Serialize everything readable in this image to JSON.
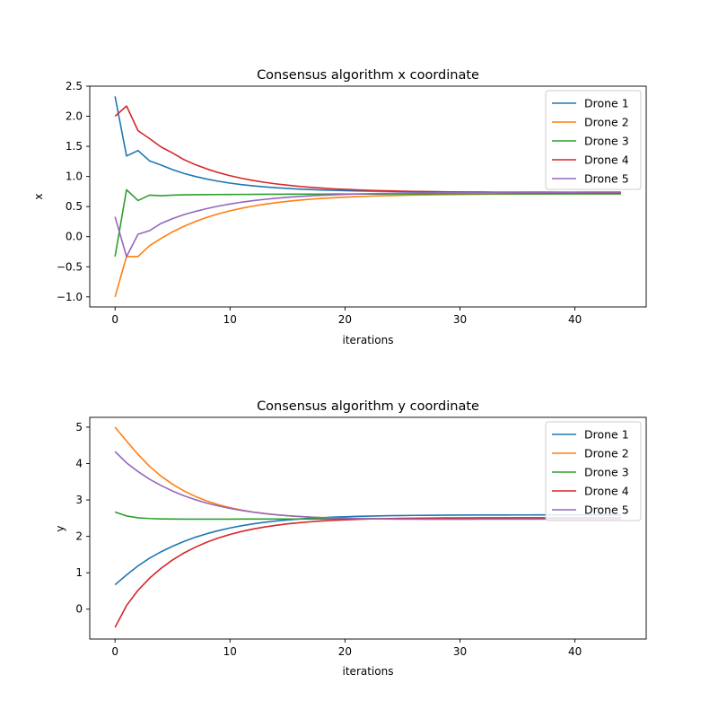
{
  "chart_data": [
    {
      "type": "line",
      "title": "Consensus algorithm x coordinate",
      "xlabel": "iterations",
      "ylabel": "x",
      "xlim": [
        -2.2,
        46.2
      ],
      "ylim": [
        -1.167,
        2.5
      ],
      "xticks": [
        0,
        10,
        20,
        30,
        40
      ],
      "xtick_labels": [
        "0",
        "10",
        "20",
        "30",
        "40"
      ],
      "yticks": [
        -1.0,
        -0.5,
        0.0,
        0.5,
        1.0,
        1.5,
        2.0,
        2.5
      ],
      "ytick_labels": [
        "−1.0",
        "−0.5",
        "0.0",
        "0.5",
        "1.0",
        "1.5",
        "2.0",
        "2.5"
      ],
      "grid": false,
      "legend_position": "top-right",
      "x": [
        0,
        1,
        2,
        3,
        4,
        5,
        6,
        7,
        8,
        9,
        10,
        11,
        12,
        13,
        14,
        15,
        16,
        17,
        18,
        19,
        20,
        21,
        22,
        23,
        24,
        25,
        26,
        27,
        28,
        29,
        30,
        31,
        32,
        33,
        34,
        35,
        36,
        37,
        38,
        39,
        40,
        41,
        42,
        43,
        44
      ],
      "series": [
        {
          "name": "Drone 1",
          "color": "#1f77b4",
          "values": [
            2.33,
            1.34,
            1.43,
            1.26,
            1.19,
            1.113,
            1.051,
            0.999,
            0.956,
            0.92,
            0.89,
            0.865,
            0.845,
            0.828,
            0.813,
            0.801,
            0.791,
            0.783,
            0.776,
            0.77,
            0.765,
            0.761,
            0.757,
            0.754,
            0.752,
            0.75,
            0.748,
            0.746,
            0.745,
            0.744,
            0.743,
            0.742,
            0.742,
            0.741,
            0.741,
            0.74,
            0.74,
            0.74,
            0.74,
            0.739,
            0.739,
            0.739,
            0.739,
            0.739,
            0.739
          ]
        },
        {
          "name": "Drone 2",
          "color": "#ff7f0e",
          "values": [
            -1.0,
            -0.33,
            -0.33,
            -0.15,
            -0.03,
            0.08,
            0.173,
            0.253,
            0.322,
            0.38,
            0.43,
            0.472,
            0.508,
            0.539,
            0.565,
            0.587,
            0.606,
            0.622,
            0.635,
            0.647,
            0.657,
            0.665,
            0.672,
            0.678,
            0.683,
            0.687,
            0.691,
            0.694,
            0.697,
            0.699,
            0.701,
            0.703,
            0.704,
            0.706,
            0.707,
            0.708,
            0.709,
            0.709,
            0.71,
            0.711,
            0.711,
            0.711,
            0.712,
            0.712,
            0.712
          ]
        },
        {
          "name": "Drone 3",
          "color": "#2ca02c",
          "values": [
            -0.33,
            0.78,
            0.6,
            0.69,
            0.68,
            0.69,
            0.695,
            0.697,
            0.699,
            0.7,
            0.701,
            0.702,
            0.703,
            0.704,
            0.705,
            0.706,
            0.706,
            0.707,
            0.707,
            0.708,
            0.708,
            0.709,
            0.709,
            0.709,
            0.71,
            0.71,
            0.71,
            0.71,
            0.711,
            0.711,
            0.711,
            0.711,
            0.711,
            0.711,
            0.712,
            0.712,
            0.712,
            0.712,
            0.712,
            0.712,
            0.712,
            0.712,
            0.712,
            0.712,
            0.712
          ]
        },
        {
          "name": "Drone 4",
          "color": "#d62728",
          "values": [
            2.0,
            2.17,
            1.76,
            1.63,
            1.49,
            1.39,
            1.279,
            1.195,
            1.124,
            1.064,
            1.013,
            0.97,
            0.934,
            0.903,
            0.877,
            0.855,
            0.836,
            0.82,
            0.807,
            0.795,
            0.786,
            0.778,
            0.771,
            0.765,
            0.76,
            0.755,
            0.752,
            0.749,
            0.746,
            0.744,
            0.742,
            0.74,
            0.739,
            0.737,
            0.736,
            0.735,
            0.735,
            0.734,
            0.733,
            0.733,
            0.732,
            0.732,
            0.732,
            0.732,
            0.731
          ]
        },
        {
          "name": "Drone 5",
          "color": "#9467bd",
          "values": [
            0.33,
            -0.33,
            0.04,
            0.1,
            0.22,
            0.3,
            0.366,
            0.42,
            0.467,
            0.508,
            0.543,
            0.573,
            0.598,
            0.62,
            0.638,
            0.654,
            0.667,
            0.678,
            0.688,
            0.696,
            0.703,
            0.708,
            0.713,
            0.717,
            0.721,
            0.724,
            0.726,
            0.728,
            0.73,
            0.732,
            0.733,
            0.734,
            0.735,
            0.736,
            0.737,
            0.737,
            0.738,
            0.738,
            0.739,
            0.739,
            0.739,
            0.74,
            0.74,
            0.74,
            0.74
          ]
        }
      ]
    },
    {
      "type": "line",
      "title": "Consensus algorithm y coordinate",
      "xlabel": "iterations",
      "ylabel": "y",
      "xlim": [
        -2.2,
        46.2
      ],
      "ylim": [
        -0.82,
        5.27
      ],
      "xticks": [
        0,
        10,
        20,
        30,
        40
      ],
      "xtick_labels": [
        "0",
        "10",
        "20",
        "30",
        "40"
      ],
      "yticks": [
        0,
        1,
        2,
        3,
        4,
        5
      ],
      "ytick_labels": [
        "0",
        "1",
        "2",
        "3",
        "4",
        "5"
      ],
      "grid": false,
      "legend_position": "top-right",
      "x": [
        0,
        1,
        2,
        3,
        4,
        5,
        6,
        7,
        8,
        9,
        10,
        11,
        12,
        13,
        14,
        15,
        16,
        17,
        18,
        19,
        20,
        21,
        22,
        23,
        24,
        25,
        26,
        27,
        28,
        29,
        30,
        31,
        32,
        33,
        34,
        35,
        36,
        37,
        38,
        39,
        40,
        41,
        42,
        43,
        44
      ],
      "series": [
        {
          "name": "Drone 1",
          "color": "#1f77b4",
          "values": [
            0.67,
            0.94,
            1.19,
            1.4,
            1.575,
            1.729,
            1.862,
            1.977,
            2.075,
            2.159,
            2.231,
            2.292,
            2.343,
            2.386,
            2.422,
            2.452,
            2.477,
            2.497,
            2.514,
            2.528,
            2.539,
            2.549,
            2.556,
            2.563,
            2.568,
            2.572,
            2.576,
            2.579,
            2.581,
            2.583,
            2.585,
            2.586,
            2.587,
            2.588,
            2.588,
            2.589,
            2.589,
            2.59,
            2.59,
            2.59,
            2.591,
            2.591,
            2.591,
            2.591,
            2.591
          ]
        },
        {
          "name": "Drone 2",
          "color": "#ff7f0e",
          "values": [
            5.0,
            4.62,
            4.25,
            3.925,
            3.656,
            3.432,
            3.247,
            3.095,
            2.971,
            2.87,
            2.788,
            2.722,
            2.669,
            2.627,
            2.593,
            2.567,
            2.546,
            2.53,
            2.518,
            2.508,
            2.501,
            2.496,
            2.492,
            2.489,
            2.487,
            2.485,
            2.484,
            2.483,
            2.482,
            2.482,
            2.481,
            2.481,
            2.481,
            2.481,
            2.481,
            2.481,
            2.481,
            2.481,
            2.481,
            2.481,
            2.481,
            2.481,
            2.481,
            2.481,
            2.481
          ]
        },
        {
          "name": "Drone 3",
          "color": "#2ca02c",
          "values": [
            2.67,
            2.56,
            2.51,
            2.49,
            2.48,
            2.475,
            2.474,
            2.474,
            2.474,
            2.474,
            2.474,
            2.475,
            2.475,
            2.475,
            2.476,
            2.476,
            2.477,
            2.477,
            2.477,
            2.478,
            2.478,
            2.479,
            2.479,
            2.479,
            2.48,
            2.48,
            2.48,
            2.48,
            2.481,
            2.481,
            2.481,
            2.481,
            2.481,
            2.481,
            2.481,
            2.481,
            2.481,
            2.481,
            2.481,
            2.481,
            2.481,
            2.481,
            2.481,
            2.481,
            2.481
          ]
        },
        {
          "name": "Drone 4",
          "color": "#d62728",
          "values": [
            -0.5,
            0.1,
            0.52,
            0.85,
            1.122,
            1.351,
            1.544,
            1.706,
            1.842,
            1.957,
            2.053,
            2.134,
            2.201,
            2.257,
            2.304,
            2.343,
            2.375,
            2.401,
            2.423,
            2.441,
            2.455,
            2.467,
            2.476,
            2.484,
            2.49,
            2.495,
            2.499,
            2.502,
            2.504,
            2.506,
            2.507,
            2.508,
            2.509,
            2.509,
            2.51,
            2.51,
            2.51,
            2.51,
            2.51,
            2.51,
            2.51,
            2.51,
            2.51,
            2.51,
            2.51
          ]
        },
        {
          "name": "Drone 5",
          "color": "#9467bd",
          "values": [
            4.33,
            4.02,
            3.78,
            3.57,
            3.398,
            3.246,
            3.116,
            3.006,
            2.913,
            2.835,
            2.769,
            2.713,
            2.666,
            2.627,
            2.595,
            2.569,
            2.547,
            2.529,
            2.515,
            2.503,
            2.494,
            2.487,
            2.482,
            2.478,
            2.475,
            2.473,
            2.472,
            2.471,
            2.471,
            2.471,
            2.471,
            2.471,
            2.472,
            2.472,
            2.473,
            2.473,
            2.474,
            2.474,
            2.475,
            2.475,
            2.476,
            2.476,
            2.476,
            2.477,
            2.477
          ]
        }
      ]
    }
  ]
}
